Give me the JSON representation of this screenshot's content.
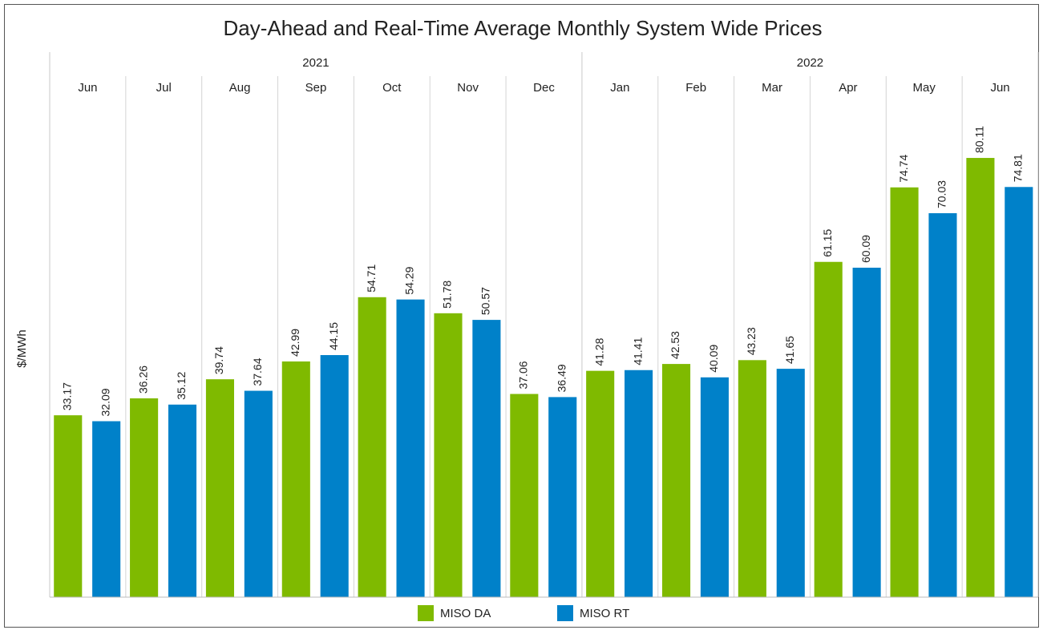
{
  "chart_data": {
    "type": "bar",
    "title": "Day-Ahead and Real-Time Average Monthly System Wide Prices",
    "y_label": "$/MWh",
    "category_groups": [
      {
        "label": "2021",
        "categories": [
          "Jun",
          "Jul",
          "Aug",
          "Sep",
          "Oct",
          "Nov",
          "Dec"
        ]
      },
      {
        "label": "2022",
        "categories": [
          "Jan",
          "Feb",
          "Mar",
          "Apr",
          "May",
          "Jun"
        ]
      }
    ],
    "series": [
      {
        "name": "MISO DA",
        "color": "#7fba00",
        "values": [
          33.17,
          36.26,
          39.74,
          42.99,
          54.71,
          51.78,
          37.06,
          41.28,
          42.53,
          43.23,
          61.15,
          74.74,
          80.11
        ]
      },
      {
        "name": "MISO RT",
        "color": "#0081c9",
        "values": [
          32.09,
          35.12,
          37.64,
          44.15,
          54.29,
          50.57,
          36.49,
          41.41,
          40.09,
          41.65,
          60.09,
          70.03,
          74.81
        ]
      }
    ],
    "ylim": [
      0,
      100
    ]
  }
}
